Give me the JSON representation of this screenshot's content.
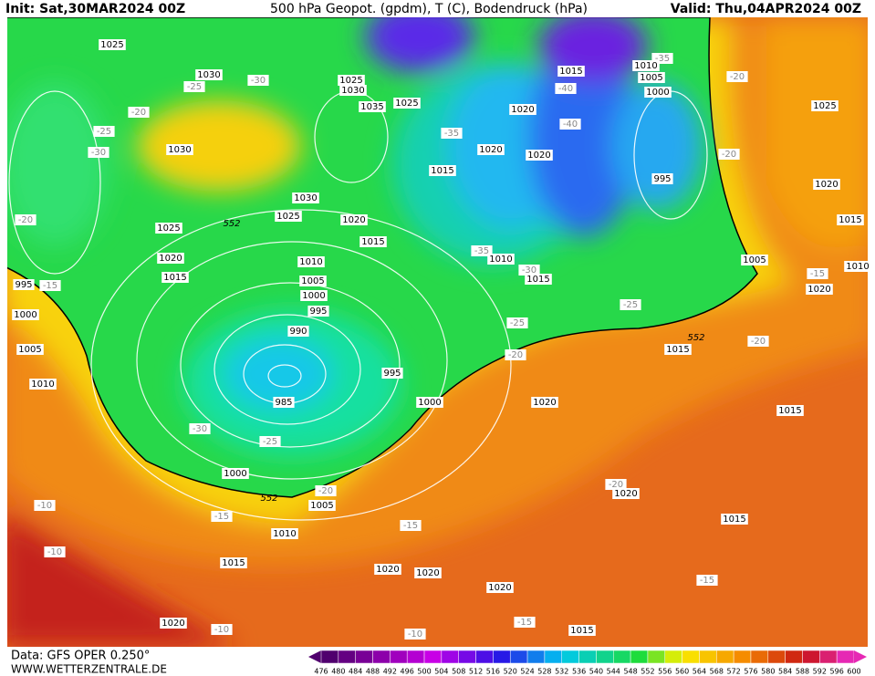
{
  "header": {
    "init": "Init: Sat,30MAR2024 00Z",
    "title": "500 hPa Geopot. (gpdm), T (C), Bodendruck (hPa)",
    "valid": "Valid: Thu,04APR2024 00Z"
  },
  "footer": {
    "data_source": "Data: GFS OPER 0.250°",
    "website": "WWW.WETTERZENTRALE.DE"
  },
  "colorbar": {
    "labels": [
      "476",
      "480",
      "484",
      "488",
      "492",
      "496",
      "500",
      "504",
      "508",
      "512",
      "516",
      "520",
      "524",
      "528",
      "532",
      "536",
      "540",
      "544",
      "548",
      "552",
      "556",
      "560",
      "564",
      "568",
      "572",
      "576",
      "580",
      "584",
      "588",
      "592",
      "596",
      "600"
    ]
  },
  "map": {
    "pressure_labels": [
      "1025",
      "1030",
      "1025",
      "1030",
      "1035",
      "1025",
      "1015",
      "1010",
      "1005",
      "1000",
      "1020",
      "1020",
      "1020",
      "1015",
      "995",
      "1030",
      "1025",
      "1030",
      "1025",
      "1020",
      "1015",
      "1020",
      "1015",
      "995",
      "1000",
      "1005",
      "1010",
      "1010",
      "1005",
      "1000",
      "995",
      "990",
      "985",
      "995",
      "1000",
      "1010",
      "1015",
      "1005",
      "1020",
      "1010",
      "1015",
      "1020",
      "1015",
      "1000",
      "1005",
      "1010",
      "1015",
      "1020",
      "1020",
      "1020",
      "1015",
      "1020",
      "1020",
      "1015",
      "1025",
      "1020",
      "1015"
    ],
    "temperature_labels": [
      "-25",
      "-30",
      "-20",
      "-25",
      "-30",
      "-20",
      "-15",
      "-35",
      "-40",
      "-40",
      "-35",
      "-20",
      "-20",
      "-35",
      "-30",
      "-25",
      "-20",
      "-25",
      "-15",
      "-20",
      "-30",
      "-25",
      "-20",
      "-15",
      "-15",
      "-10",
      "-10",
      "-10",
      "-10",
      "-15",
      "-15",
      "-20"
    ],
    "geopotential_labels": [
      "552",
      "552",
      "552"
    ]
  }
}
